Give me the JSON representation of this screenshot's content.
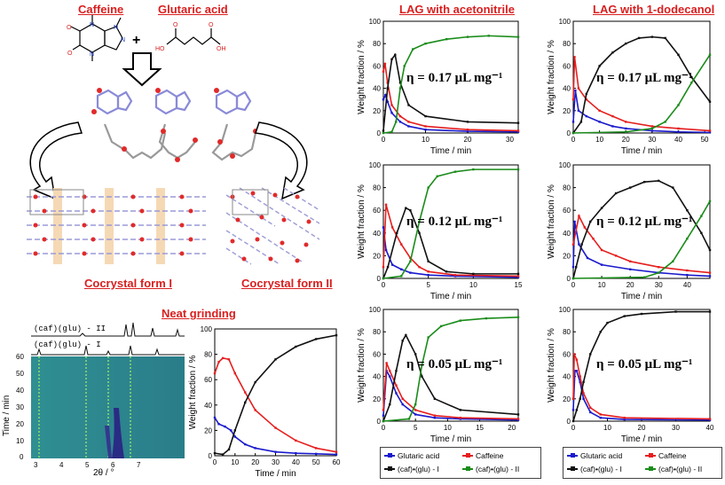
{
  "headers": {
    "caffeine": "Caffeine",
    "glutaric_acid": "Glutaric acid",
    "lag_acetonitrile": "LAG with acetonitrile",
    "lag_dodecanol": "LAG with 1-dodecanol",
    "form1": "Cocrystal form I",
    "form2": "Cocrystal form II",
    "neat": "Neat grinding"
  },
  "plus": "+",
  "chem_labels": {
    "o1": "O",
    "o2": "O",
    "n1": "N",
    "n2": "N",
    "n3": "N",
    "n4": "N",
    "ho": "HO",
    "oh": "OH",
    "o3": "O",
    "o4": "O"
  },
  "pxrd": {
    "pattern_labels": [
      "(caf)(glu) - II",
      "(caf)(glu) - I"
    ],
    "ylabel": "Time / min",
    "xlabel": "2θ / °",
    "yticks": [
      "60",
      "50",
      "40",
      "30",
      "20",
      "10",
      "0"
    ],
    "xticks": [
      "3",
      "4",
      "5",
      "6",
      "7"
    ]
  },
  "axis": {
    "ylabel": "Weight fraction / %",
    "xlabel": "Time / min"
  },
  "eta_labels": [
    "η = 0.17 μL mg⁻¹",
    "η = 0.12 μL mg⁻¹",
    "η = 0.05 μL mg⁻¹",
    "η = 0.17 μL mg⁻¹",
    "η = 0.12 μL mg⁻¹",
    "η = 0.05 μL mg⁻¹"
  ],
  "legend": {
    "glutaric": "Glutaric acid",
    "caffeine": "Caffeine",
    "form1": "(caf)•(glu) - I",
    "form2": "(caf)•(glu) - II"
  },
  "colors": {
    "glutaric": "#1a1acc",
    "caffeine": "#e61e1e",
    "form1": "#111111",
    "form2": "#1a8c1a",
    "accent": "#d91f1f"
  },
  "chart_data": [
    {
      "id": "neat",
      "type": "line",
      "title": "Neat grinding",
      "xlabel": "Time / min",
      "ylabel": "Weight fraction / %",
      "xlim": [
        0,
        60
      ],
      "ylim": [
        0,
        100
      ],
      "xticks": [
        0,
        10,
        20,
        30,
        40,
        50,
        60
      ],
      "yticks": [
        0,
        20,
        40,
        60,
        80,
        100
      ],
      "series": [
        {
          "name": "Glutaric acid",
          "key": "glutaric",
          "x": [
            0,
            2,
            5,
            8,
            10,
            15,
            20,
            30,
            40,
            50,
            60
          ],
          "values": [
            30,
            25,
            23,
            20,
            15,
            9,
            6,
            3,
            2,
            1.5,
            1
          ]
        },
        {
          "name": "Caffeine",
          "key": "caffeine",
          "x": [
            0,
            2,
            4,
            7,
            10,
            15,
            20,
            30,
            40,
            50,
            60
          ],
          "values": [
            65,
            74,
            77,
            76,
            65,
            50,
            36,
            22,
            12,
            6,
            3
          ]
        },
        {
          "name": "(caf)•(glu) - I",
          "key": "form1",
          "x": [
            0,
            4,
            7,
            10,
            15,
            20,
            30,
            40,
            50,
            60
          ],
          "values": [
            2,
            1,
            5,
            20,
            42,
            58,
            76,
            86,
            92,
            95
          ]
        }
      ]
    },
    {
      "id": "ace017",
      "type": "line",
      "title": "LAG with acetonitrile",
      "annotation": "η = 0.17 μL mg⁻¹",
      "xlim": [
        0,
        32
      ],
      "ylim": [
        0,
        100
      ],
      "xticks": [
        0,
        10,
        20,
        30
      ],
      "yticks": [
        0,
        20,
        40,
        60,
        80,
        100
      ],
      "series": [
        {
          "name": "Glutaric acid",
          "key": "glutaric",
          "x": [
            0,
            0.5,
            1,
            2,
            4,
            6,
            10,
            20,
            32
          ],
          "values": [
            30,
            34,
            28,
            18,
            10,
            6,
            3,
            1.5,
            1
          ]
        },
        {
          "name": "Caffeine",
          "key": "caffeine",
          "x": [
            0,
            0.4,
            1,
            2,
            4,
            6,
            10,
            20,
            32
          ],
          "values": [
            55,
            62,
            45,
            25,
            15,
            10,
            6,
            3,
            2
          ]
        },
        {
          "name": "(caf)•(glu) - I",
          "key": "form1",
          "x": [
            0,
            1,
            2,
            2.8,
            4,
            6,
            10,
            20,
            32
          ],
          "values": [
            2,
            40,
            66,
            70,
            45,
            25,
            15,
            10,
            9
          ]
        },
        {
          "name": "(caf)•(glu) - II",
          "key": "form2",
          "x": [
            0,
            2,
            3,
            4,
            5,
            7,
            10,
            15,
            20,
            25,
            32
          ],
          "values": [
            0,
            1,
            10,
            40,
            60,
            75,
            80,
            84,
            86,
            87,
            86
          ]
        }
      ]
    },
    {
      "id": "ace012",
      "type": "line",
      "annotation": "η = 0.12 μL mg⁻¹",
      "xlim": [
        0,
        15
      ],
      "ylim": [
        0,
        100
      ],
      "xticks": [
        0,
        5,
        10,
        15
      ],
      "yticks": [
        0,
        20,
        40,
        60,
        80,
        100
      ],
      "series": [
        {
          "name": "Glutaric acid",
          "key": "glutaric",
          "x": [
            0,
            0.3,
            1,
            2,
            3,
            5,
            8,
            15
          ],
          "values": [
            45,
            25,
            12,
            8,
            5,
            3,
            2,
            1
          ]
        },
        {
          "name": "Caffeine",
          "key": "caffeine",
          "x": [
            0,
            0.3,
            1,
            2,
            3,
            4,
            5,
            8,
            15
          ],
          "values": [
            10,
            65,
            45,
            30,
            18,
            10,
            6,
            3,
            2
          ]
        },
        {
          "name": "(caf)•(glu) - I",
          "key": "form1",
          "x": [
            0,
            0.5,
            1.5,
            2.5,
            3,
            4,
            5,
            7,
            10,
            15
          ],
          "values": [
            0,
            10,
            40,
            62,
            60,
            40,
            15,
            6,
            4,
            4
          ]
        },
        {
          "name": "(caf)•(glu) - II",
          "key": "form2",
          "x": [
            0,
            2,
            3,
            4,
            5,
            6,
            8,
            10,
            15
          ],
          "values": [
            0,
            2,
            15,
            50,
            80,
            90,
            94,
            96,
            96
          ]
        }
      ]
    },
    {
      "id": "ace005",
      "type": "line",
      "annotation": "η = 0.05 μL mg⁻¹",
      "xlim": [
        0,
        21
      ],
      "ylim": [
        0,
        100
      ],
      "xticks": [
        0,
        5,
        10,
        15,
        20
      ],
      "yticks": [
        0,
        20,
        40,
        60,
        80,
        100
      ],
      "series": [
        {
          "name": "Glutaric acid",
          "key": "glutaric",
          "x": [
            0,
            0.5,
            1,
            2,
            3,
            5,
            8,
            12,
            21
          ],
          "values": [
            5,
            45,
            40,
            25,
            15,
            6,
            3,
            2,
            1
          ]
        },
        {
          "name": "Caffeine",
          "key": "caffeine",
          "x": [
            0,
            0.5,
            1,
            2,
            3,
            5,
            8,
            12,
            21
          ],
          "values": [
            10,
            52,
            45,
            32,
            20,
            10,
            5,
            3,
            2
          ]
        },
        {
          "name": "(caf)•(glu) - I",
          "key": "form1",
          "x": [
            0,
            1,
            2,
            3,
            3.5,
            5,
            6,
            8,
            12,
            21
          ],
          "values": [
            0,
            15,
            45,
            72,
            77,
            60,
            40,
            20,
            10,
            6
          ]
        },
        {
          "name": "(caf)•(glu) - II",
          "key": "form2",
          "x": [
            0,
            4,
            5,
            6,
            7,
            9,
            12,
            16,
            21
          ],
          "values": [
            0,
            2,
            15,
            50,
            75,
            85,
            90,
            92,
            93
          ]
        }
      ]
    },
    {
      "id": "dod017",
      "type": "line",
      "title": "LAG with 1-dodecanol",
      "annotation": "η = 0.17 μL mg⁻¹",
      "xlim": [
        0,
        52
      ],
      "ylim": [
        0,
        100
      ],
      "xticks": [
        0,
        10,
        20,
        30,
        40,
        50
      ],
      "yticks": [
        0,
        20,
        40,
        60,
        80,
        100
      ],
      "series": [
        {
          "name": "Glutaric acid",
          "key": "glutaric",
          "x": [
            0,
            0.8,
            2,
            5,
            10,
            15,
            20,
            30,
            40,
            52
          ],
          "values": [
            10,
            38,
            20,
            15,
            10,
            6,
            4,
            2,
            1,
            0.5
          ]
        },
        {
          "name": "Caffeine",
          "key": "caffeine",
          "x": [
            0,
            0.5,
            2,
            5,
            10,
            15,
            20,
            30,
            40,
            52
          ],
          "values": [
            30,
            68,
            40,
            30,
            20,
            15,
            10,
            6,
            4,
            2
          ]
        },
        {
          "name": "(caf)•(glu) - I",
          "key": "form1",
          "x": [
            0,
            3,
            5,
            10,
            15,
            20,
            25,
            30,
            35,
            40,
            45,
            52
          ],
          "values": [
            0,
            10,
            35,
            60,
            72,
            80,
            85,
            86,
            85,
            70,
            50,
            28
          ]
        },
        {
          "name": "(caf)•(glu) - II",
          "key": "form2",
          "x": [
            0,
            20,
            30,
            35,
            40,
            45,
            52
          ],
          "values": [
            0,
            1,
            4,
            10,
            25,
            45,
            70
          ]
        }
      ]
    },
    {
      "id": "dod012",
      "type": "line",
      "annotation": "η = 0.12 μL mg⁻¹",
      "xlim": [
        0,
        48
      ],
      "ylim": [
        0,
        100
      ],
      "xticks": [
        0,
        10,
        20,
        30,
        40
      ],
      "yticks": [
        0,
        20,
        40,
        60,
        80,
        100
      ],
      "series": [
        {
          "name": "Glutaric acid",
          "key": "glutaric",
          "x": [
            0,
            0.5,
            2,
            5,
            10,
            20,
            30,
            40,
            48
          ],
          "values": [
            10,
            50,
            30,
            18,
            12,
            8,
            5,
            3,
            2
          ]
        },
        {
          "name": "Caffeine",
          "key": "caffeine",
          "x": [
            0,
            2,
            4,
            7,
            10,
            15,
            20,
            30,
            40,
            48
          ],
          "values": [
            30,
            55,
            45,
            35,
            25,
            20,
            15,
            10,
            7,
            5
          ]
        },
        {
          "name": "(caf)•(glu) - I",
          "key": "form1",
          "x": [
            0,
            1,
            3,
            6,
            10,
            15,
            20,
            25,
            30,
            35,
            40,
            45,
            48
          ],
          "values": [
            0,
            10,
            30,
            50,
            62,
            75,
            80,
            85,
            86,
            80,
            60,
            40,
            25
          ]
        },
        {
          "name": "(caf)•(glu) - II",
          "key": "form2",
          "x": [
            0,
            25,
            30,
            35,
            40,
            45,
            48
          ],
          "values": [
            0,
            1,
            5,
            15,
            35,
            55,
            68
          ]
        }
      ]
    },
    {
      "id": "dod005",
      "type": "line",
      "annotation": "η = 0.05 μL mg⁻¹",
      "xlim": [
        0,
        40
      ],
      "ylim": [
        0,
        100
      ],
      "xticks": [
        0,
        10,
        20,
        30,
        40
      ],
      "yticks": [
        0,
        20,
        40,
        60,
        80,
        100
      ],
      "series": [
        {
          "name": "Glutaric acid",
          "key": "glutaric",
          "x": [
            0,
            0.5,
            1,
            2,
            3,
            5,
            8,
            15,
            40
          ],
          "values": [
            10,
            45,
            45,
            35,
            20,
            8,
            3,
            1.5,
            1
          ]
        },
        {
          "name": "Caffeine",
          "key": "caffeine",
          "x": [
            0,
            0.3,
            1,
            2,
            3,
            5,
            8,
            15,
            40
          ],
          "values": [
            20,
            60,
            55,
            40,
            25,
            12,
            6,
            3,
            2
          ]
        },
        {
          "name": "(caf)•(glu) - I",
          "key": "form1",
          "x": [
            0,
            1,
            2,
            3,
            5,
            8,
            10,
            15,
            20,
            30,
            40
          ],
          "values": [
            0,
            10,
            20,
            35,
            60,
            80,
            88,
            94,
            96,
            98,
            98
          ]
        }
      ]
    }
  ]
}
